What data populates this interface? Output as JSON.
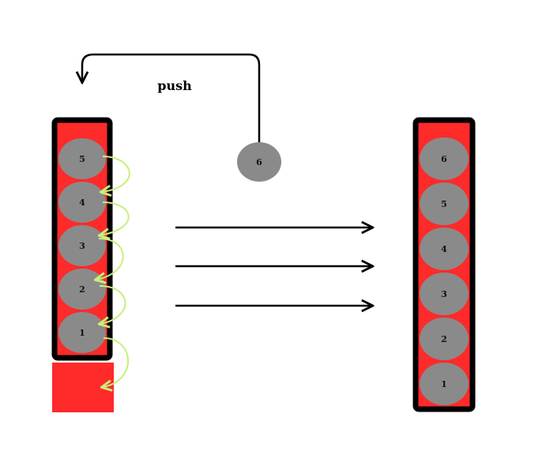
{
  "push_label": "push",
  "incoming_ball": {
    "label": "6"
  },
  "left_stack": {
    "items": [
      {
        "label": "5"
      },
      {
        "label": "4"
      },
      {
        "label": "3"
      },
      {
        "label": "2"
      },
      {
        "label": "1"
      }
    ]
  },
  "right_stack": {
    "items": [
      {
        "label": "6"
      },
      {
        "label": "5"
      },
      {
        "label": "4"
      },
      {
        "label": "3"
      },
      {
        "label": "2"
      },
      {
        "label": "1"
      }
    ]
  },
  "colors": {
    "stack_fill": "#ff2a2a",
    "stack_border": "#000000",
    "ball": "#8a8a8a",
    "shift_arrow": "#c8f07a",
    "arrow": "#000000"
  }
}
